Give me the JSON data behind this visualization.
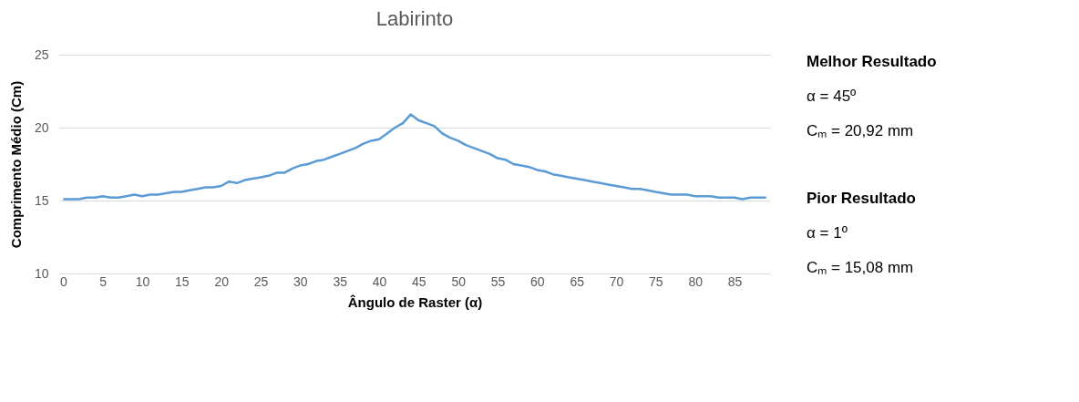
{
  "chart_data": {
    "type": "line",
    "title": "Labirinto",
    "xlabel": "Ângulo de Raster (α)",
    "ylabel": "Comprimento Médio  (Cm)",
    "x": [
      0,
      1,
      2,
      3,
      4,
      5,
      6,
      7,
      8,
      9,
      10,
      11,
      12,
      13,
      14,
      15,
      16,
      17,
      18,
      19,
      20,
      21,
      22,
      23,
      24,
      25,
      26,
      27,
      28,
      29,
      30,
      31,
      32,
      33,
      34,
      35,
      36,
      37,
      38,
      39,
      40,
      41,
      42,
      43,
      44,
      45,
      46,
      47,
      48,
      49,
      50,
      51,
      52,
      53,
      54,
      55,
      56,
      57,
      58,
      59,
      60,
      61,
      62,
      63,
      64,
      65,
      66,
      67,
      68,
      69,
      70,
      71,
      72,
      73,
      74,
      75,
      76,
      77,
      78,
      79,
      80,
      81,
      82,
      83,
      84,
      85,
      86,
      87,
      88,
      89
    ],
    "series": [
      {
        "color": "#5b9bd5",
        "values": [
          15.1,
          15.1,
          15.1,
          15.2,
          15.2,
          15.3,
          15.2,
          15.2,
          15.3,
          15.4,
          15.3,
          15.4,
          15.4,
          15.5,
          15.6,
          15.6,
          15.7,
          15.8,
          15.9,
          15.9,
          16.0,
          16.3,
          16.2,
          16.4,
          16.5,
          16.6,
          16.7,
          16.9,
          16.9,
          17.2,
          17.4,
          17.5,
          17.7,
          17.8,
          18.0,
          18.2,
          18.4,
          18.6,
          18.9,
          19.1,
          19.2,
          19.6,
          20.0,
          20.3,
          20.9,
          20.5,
          20.3,
          20.1,
          19.6,
          19.3,
          19.1,
          18.8,
          18.6,
          18.4,
          18.2,
          17.9,
          17.8,
          17.5,
          17.4,
          17.3,
          17.1,
          17.0,
          16.8,
          16.7,
          16.6,
          16.5,
          16.4,
          16.3,
          16.2,
          16.1,
          16.0,
          15.9,
          15.8,
          15.8,
          15.7,
          15.6,
          15.5,
          15.4,
          15.4,
          15.4,
          15.3,
          15.3,
          15.3,
          15.2,
          15.2,
          15.2,
          15.1,
          15.2,
          15.2,
          15.2
        ]
      }
    ],
    "xlim": [
      -0.5,
      89.5
    ],
    "xticks": [
      0,
      5,
      10,
      15,
      20,
      25,
      30,
      35,
      40,
      45,
      50,
      55,
      60,
      65,
      70,
      75,
      80,
      85
    ],
    "ylim": [
      10,
      25
    ],
    "yticks": [
      10,
      15,
      20,
      25
    ],
    "grid": "y",
    "marker": "none",
    "line_style": "solid",
    "annotations": [
      "Melhor Resultado",
      "α = 45º",
      "Cₘ = 20,92 mm",
      "Pior Resultado",
      "α = 1º",
      "Cₘ = 15,08 mm"
    ]
  }
}
